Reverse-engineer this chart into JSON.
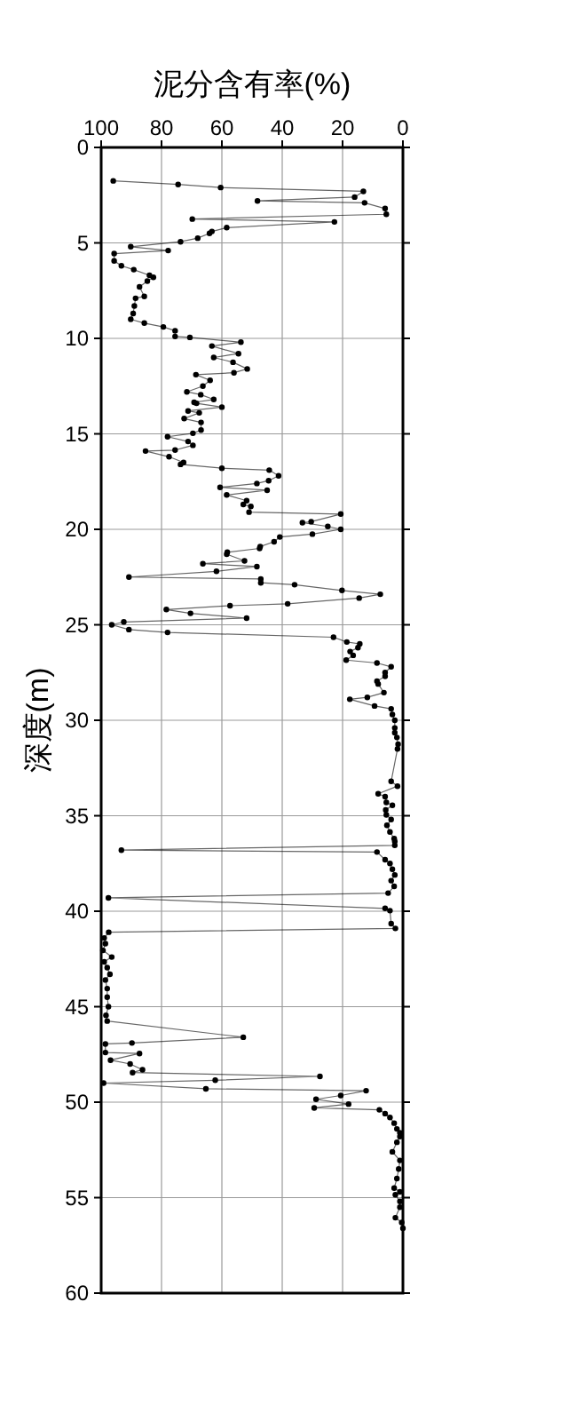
{
  "chart_data": {
    "type": "line",
    "xlabel": "泥分含有率(%)",
    "ylabel": "深度(m)",
    "xlim": [
      100,
      0
    ],
    "xticks": [
      100,
      80,
      60,
      40,
      20,
      0
    ],
    "ylim": [
      60,
      0
    ],
    "yticks": [
      0,
      5,
      10,
      15,
      20,
      25,
      30,
      35,
      40,
      45,
      50,
      55,
      60
    ],
    "grid": true,
    "marker": "circle",
    "line_style": "solid",
    "series": [
      {
        "color": "#000000",
        "x": [
          96,
          74.5,
          60.4,
          13.1,
          16,
          48.2,
          12.7,
          5.9,
          5.5,
          69.8,
          22.7,
          58.4,
          63.3,
          64.1,
          68,
          73.7,
          90.2,
          77.8,
          95.7,
          95.7,
          93.3,
          89.2,
          84,
          82.7,
          84.7,
          87.3,
          85.7,
          88.6,
          89,
          89.4,
          90.2,
          85.7,
          79.4,
          75.5,
          75.5,
          70.6,
          53.7,
          63.3,
          54.5,
          62.7,
          56.3,
          51.6,
          56,
          68.6,
          63.9,
          66.3,
          71.6,
          67,
          62.7,
          69.2,
          68.4,
          60,
          71.2,
          67.5,
          72.5,
          66.9,
          66.9,
          69.6,
          78,
          71.2,
          69.6,
          75.5,
          85.3,
          77.5,
          72.7,
          73.7,
          60,
          44.3,
          41.2,
          44.5,
          48.4,
          60.6,
          45,
          58.4,
          51.8,
          52.9,
          50.4,
          51,
          20.6,
          30.4,
          33.3,
          24.9,
          20.6,
          30,
          40.8,
          42.7,
          47.3,
          47.5,
          58.2,
          58.4,
          52.5,
          66.3,
          48.4,
          61.8,
          90.8,
          47.1,
          47.1,
          35.9,
          20.2,
          7.5,
          14.5,
          38.2,
          57.3,
          78.4,
          70.4,
          51.8,
          92.5,
          96.5,
          90.8,
          78,
          23,
          18.6,
          14.3,
          14.9,
          17.5,
          16.5,
          18.8,
          8.6,
          3.9,
          5.9,
          5.9,
          8.6,
          8.2,
          6.3,
          11.8,
          17.6,
          9.4,
          3.9,
          3.5,
          2.7,
          2.7,
          2.7,
          2,
          1.6,
          1.8,
          3.9,
          1.8,
          8.2,
          5.9,
          5.5,
          3.5,
          5.7,
          5.5,
          3.9,
          5.3,
          4.3,
          2.9,
          2.7,
          2.7,
          93.3,
          8.6,
          5.9,
          4.3,
          3.5,
          2.7,
          3.9,
          2.9,
          4.9,
          97.6,
          5.9,
          4.3,
          3.9,
          2.5,
          97.5,
          99,
          98.6,
          99.4,
          96.5,
          99,
          98,
          97.1,
          98.6,
          98,
          98,
          97.6,
          98.4,
          98,
          52.9,
          89.8,
          98.6,
          98.6,
          87.3,
          96.9,
          90.4,
          86.3,
          89.6,
          27.5,
          62.2,
          99.2,
          65.3,
          12.2,
          20.6,
          28.8,
          18,
          29.4,
          7.8,
          5.9,
          4.3,
          2.9,
          2,
          1,
          1,
          2,
          3.5,
          1,
          1.4,
          2,
          2.9,
          1,
          2.5,
          1,
          1,
          2.5,
          0.4,
          0
        ],
        "values": [
          1.75,
          1.94,
          2.1,
          2.3,
          2.6,
          2.8,
          2.9,
          3.2,
          3.5,
          3.75,
          3.9,
          4.2,
          4.4,
          4.5,
          4.75,
          4.94,
          5.2,
          5.4,
          5.56,
          5.94,
          6.2,
          6.4,
          6.7,
          6.8,
          7,
          7.3,
          7.8,
          7.9,
          8.3,
          8.7,
          9,
          9.2,
          9.4,
          9.6,
          9.9,
          9.95,
          10.2,
          10.4,
          10.8,
          11,
          11.25,
          11.6,
          11.8,
          11.9,
          12.2,
          12.5,
          12.8,
          12.95,
          13.2,
          13.35,
          13.4,
          13.6,
          13.8,
          13.9,
          14.2,
          14.4,
          14.8,
          14.97,
          15.15,
          15.4,
          15.6,
          15.85,
          15.9,
          16.2,
          16.5,
          16.6,
          16.8,
          16.9,
          17.2,
          17.45,
          17.6,
          17.8,
          17.95,
          18.2,
          18.5,
          18.7,
          18.8,
          19.1,
          19.2,
          19.6,
          19.65,
          19.85,
          20,
          20.25,
          20.4,
          20.65,
          20.9,
          21,
          21.2,
          21.3,
          21.65,
          21.8,
          21.95,
          22.2,
          22.5,
          22.6,
          22.8,
          22.9,
          23.2,
          23.4,
          23.6,
          23.9,
          24,
          24.2,
          24.4,
          24.65,
          24.85,
          25,
          25.25,
          25.4,
          25.65,
          25.9,
          26,
          26.2,
          26.4,
          26.6,
          26.85,
          27,
          27.2,
          27.5,
          27.7,
          27.95,
          28.1,
          28.55,
          28.8,
          28.9,
          29.25,
          29.4,
          29.7,
          30,
          30.4,
          30.65,
          30.9,
          31.25,
          31.5,
          33.2,
          33.45,
          33.85,
          34,
          34.3,
          34.45,
          34.7,
          34.95,
          35.2,
          35.5,
          35.85,
          36.2,
          36.35,
          36.55,
          36.8,
          36.9,
          37.3,
          37.5,
          37.8,
          38.1,
          38.4,
          38.7,
          39.05,
          39.3,
          39.85,
          39.97,
          40.65,
          40.9,
          41.1,
          41.4,
          41.7,
          42.05,
          42.4,
          42.65,
          42.95,
          43.3,
          43.6,
          44.05,
          44.5,
          45,
          45.45,
          45.75,
          46.6,
          46.9,
          46.95,
          47.4,
          47.45,
          47.8,
          48,
          48.3,
          48.45,
          48.65,
          48.85,
          49,
          49.3,
          49.4,
          49.65,
          49.85,
          50.1,
          50.3,
          50.4,
          50.6,
          50.8,
          51.1,
          51.4,
          51.6,
          51.8,
          52.1,
          52.6,
          53.05,
          53.5,
          54,
          54.5,
          54.7,
          54.85,
          55.2,
          55.5,
          56.05,
          56.3,
          56.6
        ]
      }
    ]
  }
}
